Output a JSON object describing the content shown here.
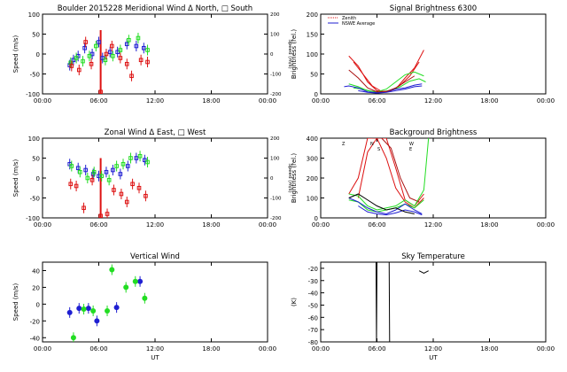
{
  "figure": {
    "colors": {
      "blue": "#1f1fd2",
      "green": "#22dd22",
      "red": "#dd1111",
      "black": "#000000",
      "darkred": "#aa1111"
    }
  },
  "chart_data": [
    {
      "id": "meridional",
      "type": "scatter",
      "title": "Boulder  2015228    Meridional Wind   Δ North, □ South",
      "xlabel": "",
      "ylabel": "Speed (m/s)",
      "y2label": "Speed (m/s)",
      "xlim": [
        0,
        24
      ],
      "ylim": [
        -100,
        100
      ],
      "y2lim": [
        -200,
        200
      ],
      "xticks": [
        "00:00",
        "06:00",
        "12:00",
        "18:00",
        "00:00"
      ],
      "yticks": [
        -100,
        -50,
        0,
        50,
        100
      ],
      "y2ticks": [
        -200,
        -100,
        0,
        100,
        200
      ],
      "series": [
        {
          "color": "blue",
          "points": [
            [
              2.9,
              -28
            ],
            [
              3.3,
              -15
            ],
            [
              3.8,
              -5
            ],
            [
              4.5,
              15
            ],
            [
              5.3,
              0
            ],
            [
              6.0,
              30
            ],
            [
              6.4,
              -10
            ],
            [
              7.2,
              5
            ],
            [
              8.0,
              5
            ],
            [
              9.0,
              25
            ],
            [
              10.0,
              20
            ],
            [
              10.8,
              15
            ]
          ]
        },
        {
          "color": "green",
          "points": [
            [
              3.0,
              -22
            ],
            [
              3.6,
              -10
            ],
            [
              4.3,
              -18
            ],
            [
              5.0,
              -5
            ],
            [
              5.7,
              20
            ],
            [
              6.7,
              -15
            ],
            [
              7.5,
              -5
            ],
            [
              8.3,
              10
            ],
            [
              9.2,
              35
            ],
            [
              10.2,
              40
            ],
            [
              11.2,
              10
            ]
          ]
        },
        {
          "color": "red",
          "points": [
            [
              3.1,
              -30
            ],
            [
              3.9,
              -40
            ],
            [
              4.6,
              30
            ],
            [
              5.2,
              -25
            ],
            [
              6.2,
              -95
            ],
            [
              6.8,
              0
            ],
            [
              7.4,
              20
            ],
            [
              8.3,
              -10
            ],
            [
              9.0,
              -25
            ],
            [
              9.5,
              -55
            ],
            [
              10.5,
              -15
            ],
            [
              11.2,
              -20
            ]
          ]
        }
      ]
    },
    {
      "id": "signal",
      "type": "line",
      "title": "Signal Brightness      6300",
      "xlabel": "",
      "ylabel": "Brightness (rel.)",
      "xlim": [
        0,
        24
      ],
      "ylim": [
        0,
        200
      ],
      "xticks": [
        "00:00",
        "06:00",
        "12:00",
        "18:00",
        "00:00"
      ],
      "yticks": [
        0,
        50,
        100,
        150,
        200
      ],
      "legend": [
        "Zenith",
        "NSWE Average"
      ],
      "series": [
        {
          "color": "red",
          "x": [
            3,
            4,
            5,
            6,
            7,
            8,
            9,
            10,
            11
          ],
          "y": [
            95,
            70,
            30,
            8,
            5,
            12,
            40,
            65,
            110
          ]
        },
        {
          "color": "red",
          "x": [
            3.5,
            4.5,
            5.5,
            6.5,
            7.5,
            8.5,
            9.5,
            10.5
          ],
          "y": [
            80,
            50,
            20,
            6,
            8,
            22,
            45,
            80
          ]
        },
        {
          "color": "green",
          "x": [
            3,
            4,
            5,
            6,
            7,
            8,
            9,
            10,
            11
          ],
          "y": [
            25,
            18,
            8,
            5,
            12,
            30,
            48,
            55,
            45
          ]
        },
        {
          "color": "green",
          "x": [
            3.5,
            4.5,
            5.5,
            6.5,
            7.5,
            8.5,
            9.5,
            10.5,
            11.2
          ],
          "y": [
            15,
            12,
            6,
            4,
            10,
            18,
            32,
            38,
            30
          ]
        },
        {
          "color": "blue",
          "x": [
            2.5,
            3,
            4,
            5,
            6,
            7,
            8,
            9,
            10,
            10.8
          ],
          "y": [
            18,
            20,
            15,
            5,
            3,
            6,
            12,
            15,
            22,
            25
          ]
        },
        {
          "color": "blue",
          "x": [
            4,
            5,
            6,
            7,
            8,
            9,
            10,
            10.8
          ],
          "y": [
            8,
            4,
            2,
            4,
            8,
            12,
            18,
            20
          ]
        },
        {
          "color": "darkred",
          "x": [
            3,
            4,
            5,
            6,
            7,
            8,
            9,
            10
          ],
          "y": [
            60,
            40,
            15,
            5,
            6,
            15,
            30,
            45
          ]
        }
      ]
    },
    {
      "id": "zonal",
      "type": "scatter",
      "title": "Zonal Wind      Δ East, □ West",
      "xlabel": "",
      "ylabel": "Speed (m/s)",
      "y2label": "Speed (m/s)",
      "xlim": [
        0,
        24
      ],
      "ylim": [
        -100,
        100
      ],
      "y2lim": [
        -200,
        200
      ],
      "xticks": [
        "00:00",
        "06:00",
        "12:00",
        "18:00",
        "00:00"
      ],
      "yticks": [
        -100,
        -50,
        0,
        50,
        100
      ],
      "y2ticks": [
        -200,
        -100,
        0,
        100,
        200
      ],
      "series": [
        {
          "color": "blue",
          "points": [
            [
              2.9,
              35
            ],
            [
              3.8,
              25
            ],
            [
              4.6,
              20
            ],
            [
              5.4,
              10
            ],
            [
              6.0,
              5
            ],
            [
              6.8,
              15
            ],
            [
              7.5,
              20
            ],
            [
              8.3,
              10
            ],
            [
              9.1,
              30
            ],
            [
              10.0,
              50
            ],
            [
              10.9,
              45
            ]
          ]
        },
        {
          "color": "green",
          "points": [
            [
              3.1,
              30
            ],
            [
              4.0,
              15
            ],
            [
              4.8,
              0
            ],
            [
              5.5,
              15
            ],
            [
              6.3,
              5
            ],
            [
              7.1,
              -5
            ],
            [
              7.9,
              30
            ],
            [
              8.6,
              35
            ],
            [
              9.4,
              50
            ],
            [
              10.4,
              55
            ],
            [
              11.2,
              40
            ]
          ]
        },
        {
          "color": "red",
          "points": [
            [
              3.0,
              -15
            ],
            [
              3.6,
              -20
            ],
            [
              4.4,
              -75
            ],
            [
              5.3,
              -5
            ],
            [
              6.2,
              -95
            ],
            [
              6.9,
              -90
            ],
            [
              7.6,
              -30
            ],
            [
              8.4,
              -40
            ],
            [
              9.0,
              -60
            ],
            [
              9.6,
              -15
            ],
            [
              10.3,
              -25
            ],
            [
              11.0,
              -45
            ]
          ]
        }
      ]
    },
    {
      "id": "background",
      "type": "line",
      "title": "Background Brightness",
      "xlabel": "",
      "ylabel": "Brightness (rel.)",
      "xlim": [
        0,
        24
      ],
      "ylim": [
        0,
        400
      ],
      "xticks": [
        "00:00",
        "06:00",
        "12:00",
        "18:00",
        "00:00"
      ],
      "yticks": [
        0,
        100,
        200,
        300,
        400
      ],
      "legend_labels": [
        "Z",
        "N",
        "S",
        "W",
        "E"
      ],
      "series": [
        {
          "color": "red",
          "x": [
            3,
            4,
            5,
            5.5,
            6,
            7,
            8,
            9,
            10,
            11
          ],
          "y": [
            120,
            200,
            400,
            400,
            400,
            300,
            150,
            80,
            50,
            100
          ]
        },
        {
          "color": "red",
          "x": [
            4,
            5,
            6,
            7,
            8,
            9,
            10,
            11
          ],
          "y": [
            100,
            330,
            400,
            400,
            250,
            90,
            60,
            120
          ]
        },
        {
          "color": "darkred",
          "x": [
            5.5,
            6.5,
            7.5,
            8.5,
            9.5,
            10.5
          ],
          "y": [
            400,
            400,
            350,
            200,
            100,
            80
          ]
        },
        {
          "color": "green",
          "x": [
            3,
            4,
            5,
            6,
            7,
            8,
            9,
            10,
            11,
            11.5
          ],
          "y": [
            120,
            110,
            60,
            40,
            50,
            60,
            90,
            60,
            140,
            400
          ]
        },
        {
          "color": "green",
          "x": [
            3,
            4,
            5,
            6,
            7,
            8,
            9,
            10,
            11
          ],
          "y": [
            90,
            80,
            40,
            30,
            40,
            50,
            70,
            50,
            90
          ]
        },
        {
          "color": "blue",
          "x": [
            3,
            4,
            5,
            6,
            7,
            8,
            9,
            10,
            10.8
          ],
          "y": [
            100,
            80,
            50,
            30,
            20,
            40,
            70,
            40,
            20
          ]
        },
        {
          "color": "blue",
          "x": [
            4,
            5,
            6,
            7,
            8,
            9,
            10,
            10.8
          ],
          "y": [
            60,
            30,
            20,
            15,
            25,
            40,
            30,
            15
          ]
        },
        {
          "color": "black",
          "x": [
            3,
            4,
            5,
            6,
            7,
            8,
            9,
            10
          ],
          "y": [
            100,
            120,
            90,
            60,
            40,
            50,
            30,
            20
          ]
        }
      ]
    },
    {
      "id": "vertical",
      "type": "scatter",
      "title": "Vertical Wind",
      "xlabel": "UT",
      "ylabel": "Speed (m/s)",
      "xlim": [
        0,
        24
      ],
      "ylim": [
        -45,
        50
      ],
      "xticks": [
        "00:00",
        "06:00",
        "12:00",
        "18:00",
        "00:00"
      ],
      "yticks": [
        -40,
        -20,
        0,
        20,
        40
      ],
      "series": [
        {
          "color": "blue",
          "points": [
            [
              2.9,
              -10
            ],
            [
              3.9,
              -5
            ],
            [
              4.9,
              -5
            ],
            [
              5.8,
              -20
            ],
            [
              7.9,
              -4
            ],
            [
              10.4,
              27
            ]
          ]
        },
        {
          "color": "green",
          "points": [
            [
              3.3,
              -40
            ],
            [
              4.4,
              -6
            ],
            [
              5.4,
              -8
            ],
            [
              6.9,
              -8
            ],
            [
              7.4,
              41
            ],
            [
              8.9,
              20
            ],
            [
              9.9,
              27
            ],
            [
              10.9,
              7
            ]
          ]
        }
      ]
    },
    {
      "id": "sky",
      "type": "line",
      "title": "Sky Temperature",
      "xlabel": "UT",
      "ylabel": "(K)",
      "xlim": [
        0,
        24
      ],
      "ylim": [
        -80,
        -15
      ],
      "xticks": [
        "00:00",
        "06:00",
        "12:00",
        "18:00",
        "00:00"
      ],
      "yticks": [
        -80,
        -70,
        -60,
        -50,
        -40,
        -30,
        -20
      ],
      "series": [
        {
          "color": "black",
          "x": [
            5.9,
            5.95,
            6.0
          ],
          "y": [
            -15,
            -80,
            -15
          ]
        },
        {
          "color": "black",
          "x": [
            7.3,
            7.35,
            7.4
          ],
          "y": [
            -15,
            -80,
            -80
          ]
        },
        {
          "color": "black",
          "x": [
            10.5,
            11.0,
            11.5
          ],
          "y": [
            -22,
            -24,
            -22
          ]
        }
      ]
    }
  ]
}
